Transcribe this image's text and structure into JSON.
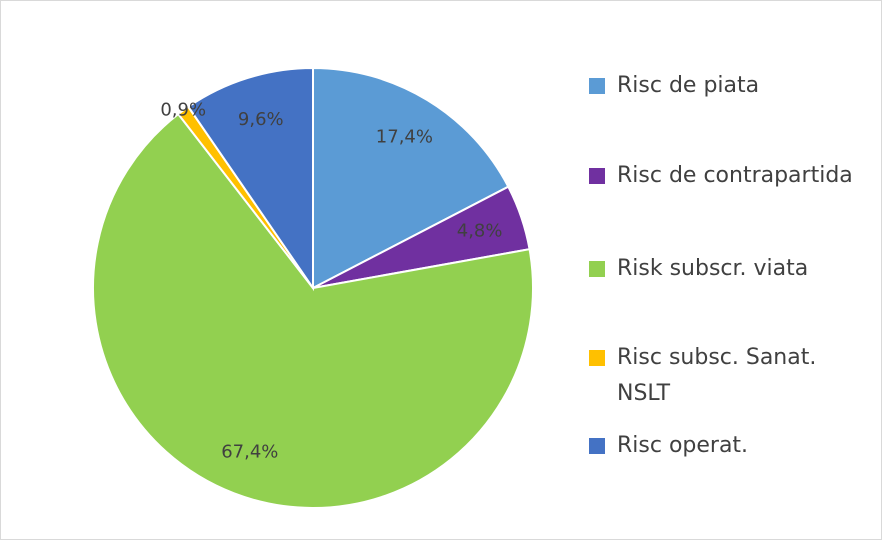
{
  "chart_data": {
    "type": "pie",
    "categories": [
      "Risc de piata",
      "Risc de contrapartida",
      "Risk subscr. viata",
      "Risc subsc. Sanat. NSLT",
      "Risc operat."
    ],
    "values": [
      17.4,
      4.8,
      67.4,
      0.9,
      9.6
    ],
    "value_labels": [
      "17,4%",
      "4,8%",
      "67,4%",
      "0,9%",
      "9,6%"
    ],
    "colors": [
      "#5b9bd5",
      "#7030a0",
      "#92d050",
      "#ffc000",
      "#4472c4"
    ],
    "legend": "right"
  }
}
